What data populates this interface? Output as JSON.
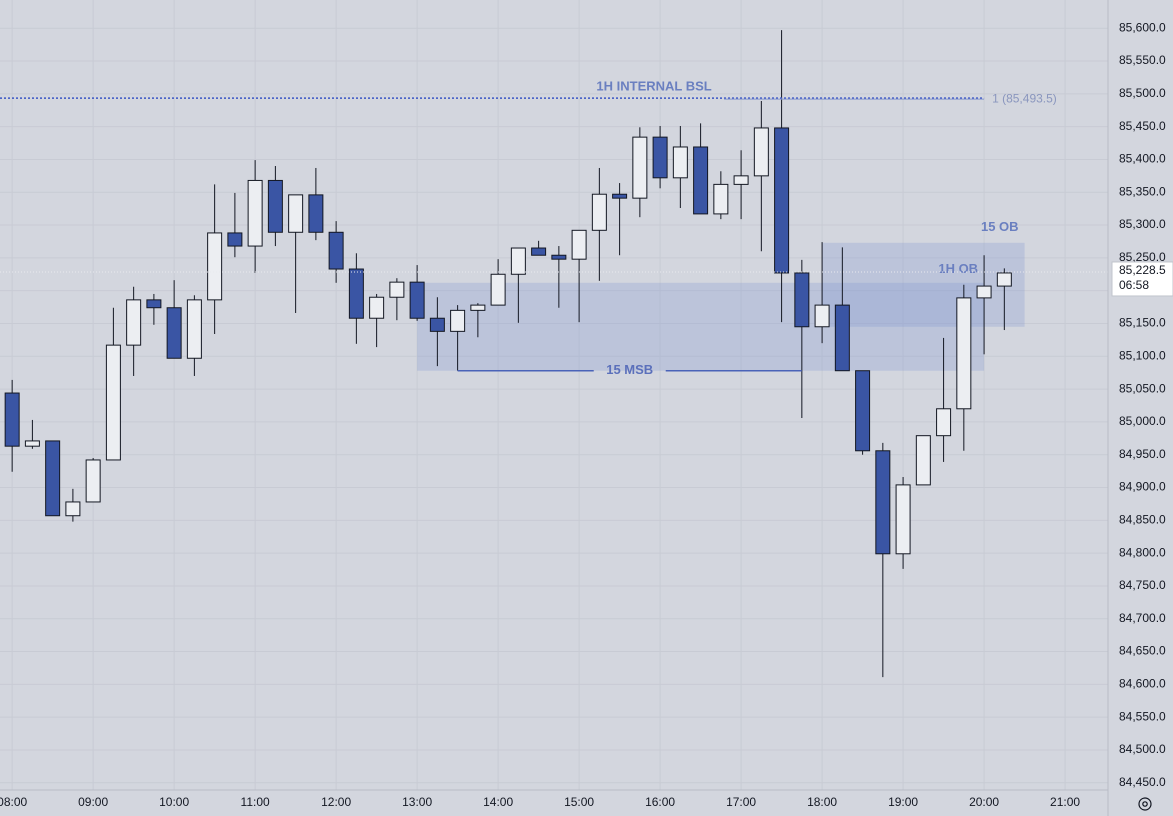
{
  "chart_data": {
    "type": "candlestick",
    "x": [
      8,
      8.25,
      8.5,
      8.75,
      9,
      9.25,
      9.5,
      9.75,
      10,
      10.25,
      10.5,
      10.75,
      11,
      11.25,
      11.5,
      11.75,
      12,
      12.25,
      12.5,
      12.75,
      13,
      13.25,
      13.5,
      13.75,
      14,
      14.25,
      14.5,
      14.75,
      15,
      15.25,
      15.5,
      15.75,
      16,
      16.25,
      16.5,
      16.75,
      17,
      17.25,
      17.5,
      17.75,
      18,
      18.25,
      18.5,
      18.75,
      19,
      19.25,
      19.5,
      19.75,
      20,
      20.25
    ],
    "open": [
      85044,
      84963,
      84971,
      84857,
      84878,
      84942,
      85117,
      85186,
      85174,
      85097,
      85186,
      85288,
      85268,
      85368,
      85289,
      85346,
      85289,
      85233,
      85158,
      85190,
      85213,
      85158,
      85138,
      85170,
      85178,
      85225,
      85265,
      85254,
      85248,
      85292,
      85347,
      85341,
      85434,
      85372,
      85419,
      85317,
      85362,
      85375,
      85448,
      85227,
      85145,
      85178,
      85078,
      84956,
      84799,
      84904,
      84979,
      85020,
      85189,
      85207
    ],
    "high": [
      85064,
      85003,
      84971,
      84898,
      84945,
      85174,
      85206,
      85195,
      85216,
      85193,
      85362,
      85349,
      85399,
      85390,
      85346,
      85387,
      85306,
      85257,
      85195,
      85219,
      85239,
      85190,
      85178,
      85181,
      85248,
      85265,
      85276,
      85268,
      85292,
      85387,
      85364,
      85449,
      85451,
      85451,
      85455,
      85382,
      85414,
      85489,
      85597,
      85247,
      85274,
      85266,
      85078,
      84968,
      84916,
      84979,
      85128,
      85209,
      85254,
      85234
    ],
    "low": [
      84924,
      84959,
      84857,
      84848,
      84878,
      84942,
      85070,
      85148,
      85097,
      85070,
      85134,
      85251,
      85227,
      85268,
      85166,
      85277,
      85212,
      85119,
      85114,
      85155,
      85154,
      85085,
      85078,
      85129,
      85178,
      85151,
      85254,
      85174,
      85152,
      85215,
      85254,
      85312,
      85356,
      85326,
      85317,
      85309,
      85309,
      85260,
      85152,
      85006,
      85120,
      85078,
      84950,
      84611,
      84776,
      84904,
      84939,
      84956,
      85103,
      85140
    ],
    "close": [
      84963,
      84971,
      84857,
      84878,
      84942,
      85117,
      85186,
      85174,
      85097,
      85186,
      85288,
      85268,
      85368,
      85289,
      85346,
      85289,
      85233,
      85158,
      85190,
      85213,
      85158,
      85138,
      85170,
      85178,
      85225,
      85265,
      85254,
      85248,
      85292,
      85347,
      85341,
      85434,
      85372,
      85419,
      85317,
      85362,
      85375,
      85448,
      85227,
      85145,
      85178,
      85078,
      84956,
      84799,
      84904,
      84979,
      85020,
      85189,
      85207,
      85227
    ],
    "up_color": "#eceef2",
    "down_color": "#3a55a4",
    "xlim": [
      7.85,
      21.53
    ],
    "ylim": [
      84439,
      85643
    ],
    "xticks": [
      {
        "value": 8,
        "label": "08:00"
      },
      {
        "value": 9,
        "label": "09:00"
      },
      {
        "value": 10,
        "label": "10:00"
      },
      {
        "value": 11,
        "label": "11:00"
      },
      {
        "value": 12,
        "label": "12:00"
      },
      {
        "value": 13,
        "label": "13:00"
      },
      {
        "value": 14,
        "label": "14:00"
      },
      {
        "value": 15,
        "label": "15:00"
      },
      {
        "value": 16,
        "label": "16:00"
      },
      {
        "value": 17,
        "label": "17:00"
      },
      {
        "value": 18,
        "label": "18:00"
      },
      {
        "value": 19,
        "label": "19:00"
      },
      {
        "value": 20,
        "label": "20:00"
      },
      {
        "value": 21,
        "label": "21:00"
      }
    ],
    "yticks": [
      {
        "value": 84450,
        "label": "84,450.0"
      },
      {
        "value": 84500,
        "label": "84,500.0"
      },
      {
        "value": 84550,
        "label": "84,550.0"
      },
      {
        "value": 84600,
        "label": "84,600.0"
      },
      {
        "value": 84650,
        "label": "84,650.0"
      },
      {
        "value": 84700,
        "label": "84,700.0"
      },
      {
        "value": 84750,
        "label": "84,750.0"
      },
      {
        "value": 84800,
        "label": "84,800.0"
      },
      {
        "value": 84850,
        "label": "84,850.0"
      },
      {
        "value": 84900,
        "label": "84,900.0"
      },
      {
        "value": 84950,
        "label": "84,950.0"
      },
      {
        "value": 85000,
        "label": "85,000.0"
      },
      {
        "value": 85050,
        "label": "85,050.0"
      },
      {
        "value": 85100,
        "label": "85,100.0"
      },
      {
        "value": 85150,
        "label": "85,150.0"
      },
      {
        "value": 85200,
        "label": "85,200.0"
      },
      {
        "value": 85250,
        "label": "85,250.0"
      },
      {
        "value": 85300,
        "label": "85,300.0"
      },
      {
        "value": 85350,
        "label": "85,350.0"
      },
      {
        "value": 85400,
        "label": "85,400.0"
      },
      {
        "value": 85450,
        "label": "85,450.0"
      },
      {
        "value": 85500,
        "label": "85,500.0"
      },
      {
        "value": 85550,
        "label": "85,550.0"
      },
      {
        "value": 85600,
        "label": "85,600.0"
      }
    ],
    "grid": true,
    "zones": [
      {
        "label": "1H OB",
        "x": [
          13.0,
          20.0
        ],
        "y": [
          85078,
          85212
        ]
      },
      {
        "label": "15 OB",
        "x": [
          18.0,
          20.5
        ],
        "y": [
          85145,
          85273
        ]
      }
    ],
    "level": {
      "label": "1H INTERNAL BSL",
      "value": 85493.5,
      "price_label": "1 (85,493.5)",
      "x_end": 20.0
    },
    "msb": {
      "label": "15 MSB",
      "x": [
        13.5,
        17.75
      ],
      "value": 85078
    },
    "current": {
      "value": 85228.5,
      "label": "85,228.5",
      "countdown": "06:58"
    }
  }
}
